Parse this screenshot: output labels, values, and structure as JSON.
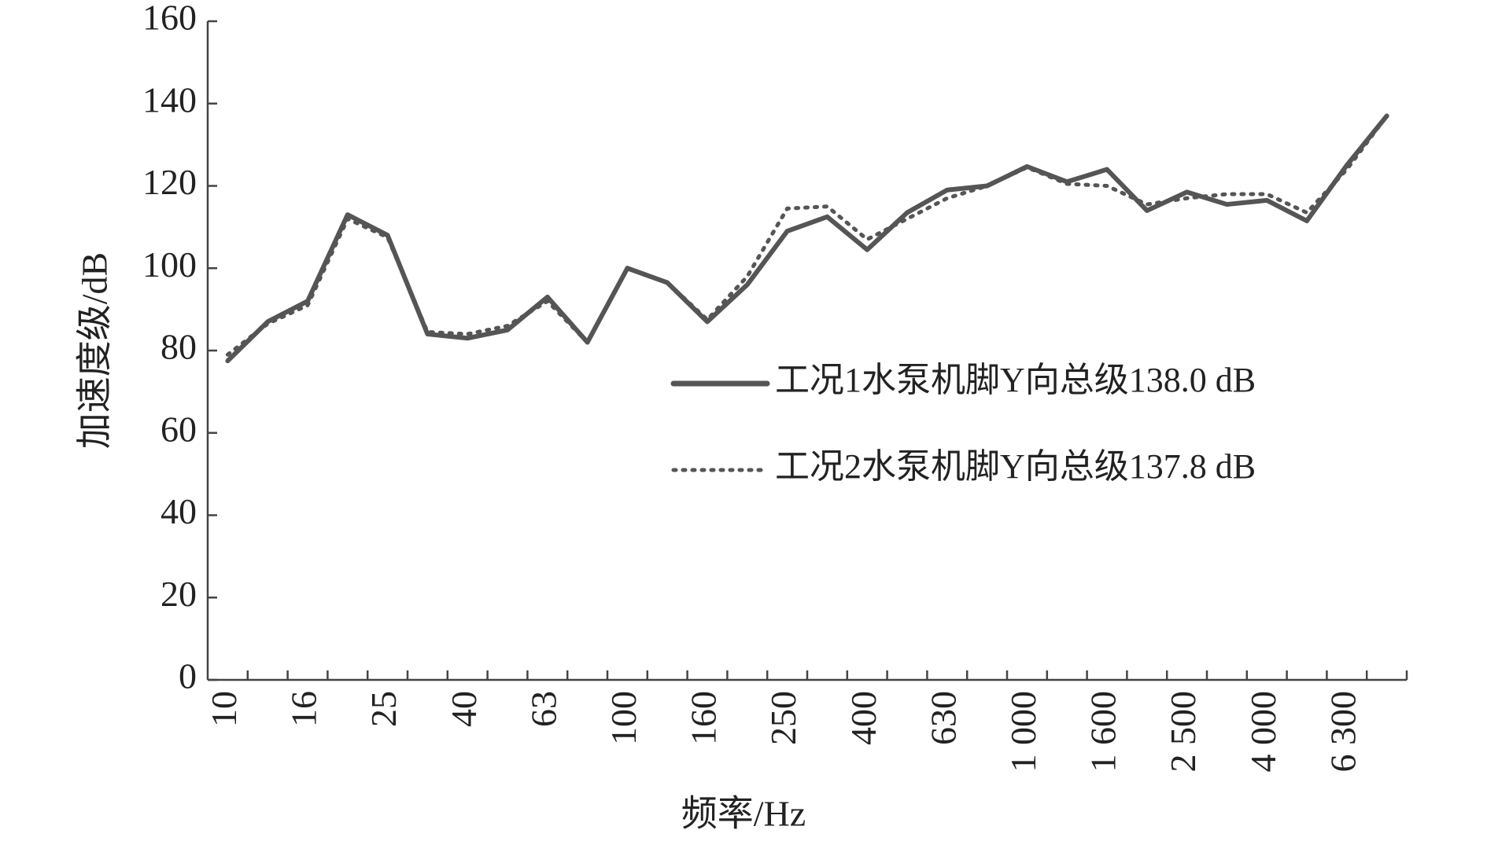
{
  "chart_data": {
    "type": "line",
    "x_label": "频率/Hz",
    "y_label": "加速度级/dB",
    "categories": [
      "10",
      null,
      "16",
      null,
      "25",
      null,
      "40",
      null,
      "63",
      null,
      "100",
      null,
      "160",
      null,
      "250",
      null,
      "400",
      null,
      "630",
      null,
      "1 000",
      null,
      "1 600",
      null,
      "2 500",
      null,
      "4 000",
      null,
      "6 300",
      null
    ],
    "series": [
      {
        "name": "工况1水泵机脚Y向总级138.0 dB",
        "color": "#555555",
        "line_style": "solid",
        "values": [
          77.5,
          87,
          92,
          113,
          108,
          84,
          83,
          85,
          93,
          82,
          100,
          96.5,
          87,
          96,
          109,
          112.5,
          104.5,
          113.5,
          119,
          120,
          124.7,
          121,
          124,
          114,
          118.5,
          115.5,
          116.5,
          111.5,
          125,
          137
        ]
      },
      {
        "name": "工况2水泵机脚Y向总级137.8 dB",
        "color": "#555555",
        "line_style": "dotted",
        "values": [
          79,
          86.5,
          91,
          112,
          107.5,
          84.5,
          84,
          86,
          92,
          82,
          100,
          96.5,
          87.5,
          98,
          114.5,
          115,
          107,
          112,
          117,
          120,
          124.5,
          120.5,
          120,
          115.5,
          117,
          118,
          118,
          113.5,
          124,
          137
        ]
      }
    ],
    "ylim": [
      0,
      160
    ],
    "yticks": [
      0,
      20,
      40,
      60,
      80,
      100,
      120,
      140,
      160
    ],
    "grid": false,
    "legend": "right"
  }
}
